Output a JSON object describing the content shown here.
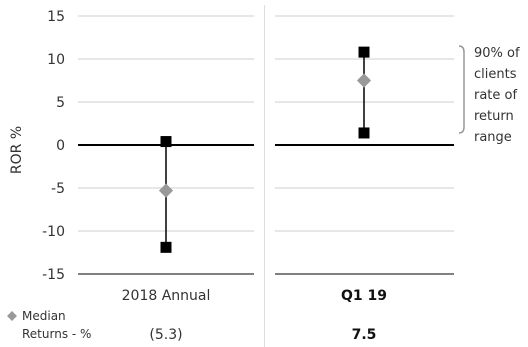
{
  "chart_data": {
    "type": "range",
    "ylabel": "ROR %",
    "ylim": [
      -15,
      15
    ],
    "yticks": [
      15,
      10,
      5,
      0,
      -5,
      -10,
      -15
    ],
    "categories": [
      "2018 Annual",
      "Q1 19"
    ],
    "category_bold": [
      false,
      true
    ],
    "high": [
      0.4,
      10.8
    ],
    "low": [
      -11.9,
      1.4
    ],
    "median": [
      -5.3,
      7.5
    ],
    "legend": {
      "lines": [
        "90% of",
        "clients",
        "rate of",
        "return",
        "range"
      ]
    },
    "median_row": {
      "label_lines": [
        "Median",
        "Returns - %"
      ],
      "values": [
        "(5.3)",
        "7.5"
      ]
    },
    "colors": {
      "grid": "#cfcfcf",
      "axis": "#000000",
      "range_marker": "#000000",
      "median_marker": "#999999",
      "bracket": "#999999"
    }
  }
}
